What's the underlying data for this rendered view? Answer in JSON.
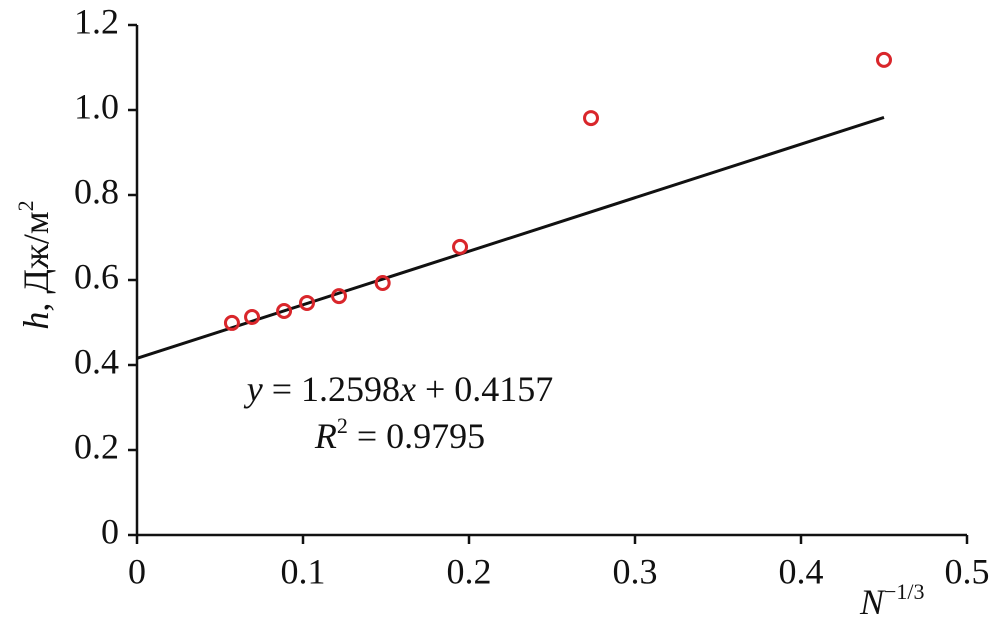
{
  "chart_data": {
    "type": "scatter",
    "xlabel": [
      "N",
      "−1/3"
    ],
    "ylabel": [
      "h",
      ", Дж/м",
      "2"
    ],
    "x": [
      0.0572,
      0.0693,
      0.0886,
      0.1024,
      0.1217,
      0.148,
      0.1946,
      0.2735,
      0.45
    ],
    "values": [
      0.499,
      0.513,
      0.527,
      0.546,
      0.562,
      0.593,
      0.678,
      0.981,
      1.118
    ],
    "color": "#d9262b",
    "trendline": {
      "slope": 1.2598,
      "intercept": 0.4157,
      "xrange": [
        0,
        0.45
      ],
      "color": "#111111"
    },
    "annotations": [
      [
        "y",
        " = 1.2598",
        "x",
        " + 0.4157"
      ],
      [
        "R",
        "2",
        " = 0.9795"
      ]
    ],
    "xlim": [
      0,
      0.5
    ],
    "xticks": [
      0,
      0.1,
      0.2,
      0.3,
      0.4,
      0.5
    ],
    "ylim": [
      0,
      1.2
    ],
    "yticks": [
      0,
      0.2,
      0.4,
      0.6,
      0.8,
      {
        "value": 1,
        "label": "1.0"
      },
      1.2
    ]
  }
}
